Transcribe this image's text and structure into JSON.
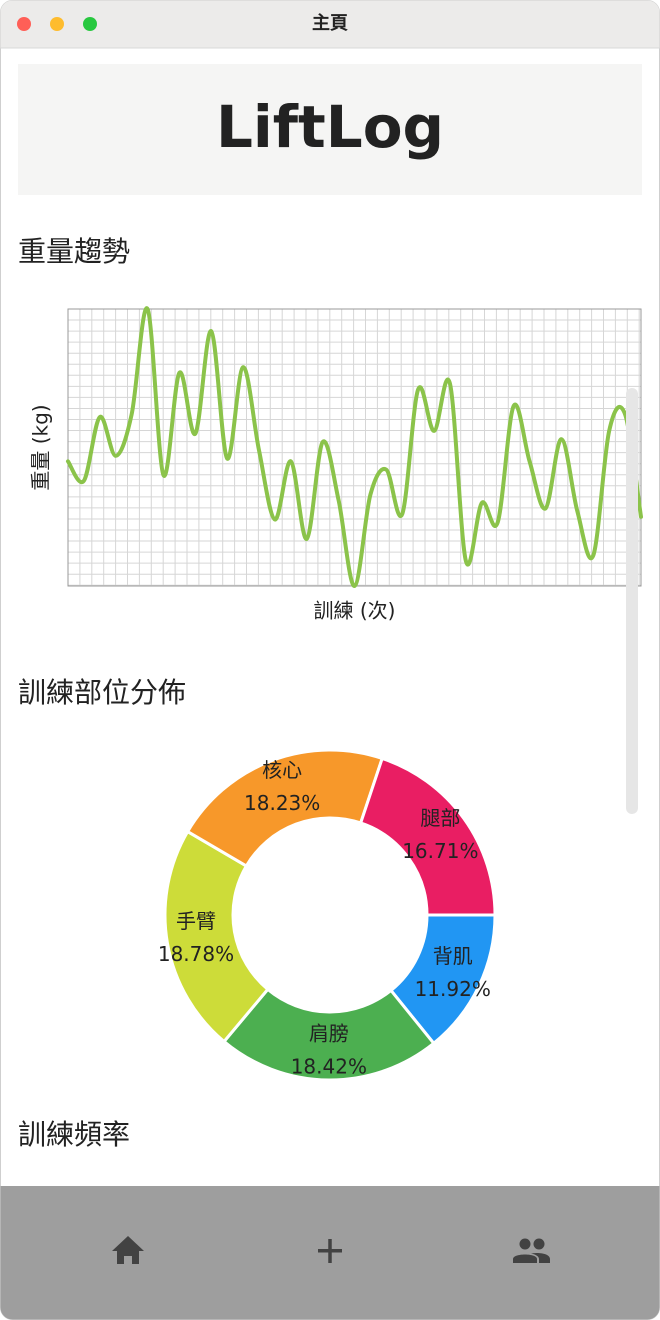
{
  "window": {
    "title": "主頁"
  },
  "header": {
    "title": "LiftLog"
  },
  "sections": [
    "重量趨勢",
    "訓練部位分佈",
    "訓練頻率"
  ],
  "chart_data": [
    {
      "type": "line",
      "ylabel": "重量 (kg)",
      "xlabel": "訓練 (次)",
      "ylim": [
        0,
        100
      ],
      "grid": true,
      "series": [
        {
          "color": "#8bc34a",
          "values": [
            45,
            38,
            61,
            47,
            62,
            100,
            40,
            77,
            55,
            92,
            46,
            79,
            49,
            24,
            45,
            17,
            52,
            31,
            0,
            33,
            42,
            26,
            71,
            56,
            73,
            9,
            30,
            23,
            65,
            45,
            28,
            53,
            27,
            11,
            56,
            62,
            25
          ]
        }
      ]
    },
    {
      "type": "pie",
      "donut": true,
      "categories": [
        "背肌",
        "肩膀",
        "手臂",
        "核心",
        "腿部"
      ],
      "values": [
        11.92,
        18.42,
        18.78,
        18.23,
        16.71
      ],
      "value_labels": [
        "11.92%",
        "18.42%",
        "18.78%",
        "18.23%",
        "16.71%"
      ],
      "colors": [
        "#2196f3",
        "#4caf50",
        "#cddc39",
        "#f7982a",
        "#e91e63"
      ]
    }
  ]
}
